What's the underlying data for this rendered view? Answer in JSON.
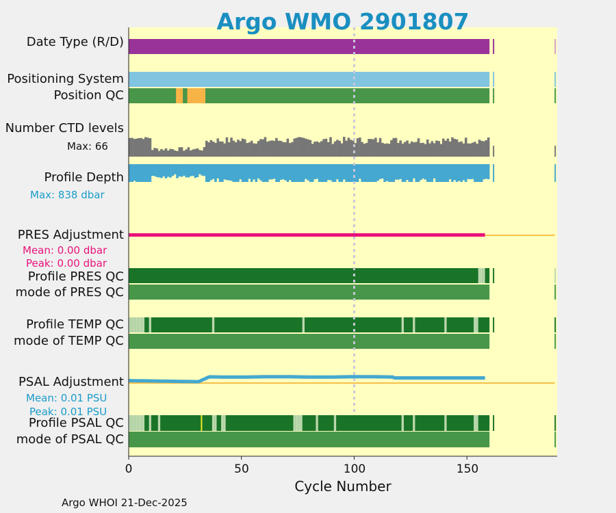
{
  "chart_data": {
    "type": "heatmap",
    "title": "Argo WMO 2901807",
    "xlabel": "Cycle Number",
    "xlim": [
      0,
      190
    ],
    "xticks": [
      "0",
      "50",
      "100",
      "150"
    ],
    "xtick_values": [
      0,
      50,
      100,
      150
    ],
    "marker_line_cycle": 100,
    "last_cycle": 160,
    "extra_cycle": 189,
    "rows": {
      "date_type": {
        "label": "Date Type (R/D)"
      },
      "positioning_system": {
        "label": "Positioning System"
      },
      "position_qc": {
        "label": "Position QC",
        "flag2_cycles": [
          21,
          22,
          23,
          26,
          27,
          28,
          29,
          30,
          31,
          32,
          33
        ]
      },
      "ctd_levels": {
        "label": "Number CTD levels",
        "max_text": "Max: 66",
        "max": 66
      },
      "profile_depth": {
        "label": "Profile Depth",
        "max_text": "Max:  838 dbar",
        "max": 838
      },
      "pres_adjustment": {
        "label": "PRES Adjustment",
        "mean_text": "Mean: 0.00 dbar",
        "peak_text": "Peak: 0.00 dbar",
        "last_adjusted_cycle": 158
      },
      "profile_pres_qc": {
        "label": "Profile PRES QC",
        "light_cycles": [
          155,
          156,
          157,
          189
        ]
      },
      "mode_pres_qc": {
        "label": "mode of PRES QC"
      },
      "profile_temp_qc": {
        "label": "Profile TEMP QC",
        "light_cycles": [
          0,
          1,
          2,
          3,
          4,
          5,
          6,
          9,
          37,
          77,
          121,
          126,
          140,
          153,
          154
        ]
      },
      "mode_temp_qc": {
        "label": "mode of TEMP QC"
      },
      "psal_adjustment": {
        "label": "PSAL Adjustment",
        "mean_text": "Mean: 0.01 PSU",
        "peak_text": "Peak: 0.01 PSU",
        "last_adjusted_cycle": 158
      },
      "profile_psal_qc": {
        "label": "Profile PSAL QC",
        "light_cycles": [
          0,
          1,
          2,
          3,
          4,
          5,
          6,
          9,
          13,
          37,
          38,
          41,
          42,
          73,
          74,
          75,
          76,
          83,
          91,
          121,
          126,
          140,
          153,
          154
        ],
        "yellow_cycles": [
          32
        ]
      },
      "mode_psal_qc": {
        "label": "mode of PSAL QC"
      }
    },
    "colors": {
      "background": "#ffffc0",
      "date_type": "#993399",
      "positioning": "#80c4e0",
      "qc_good": "#48964a",
      "qc_flag2": "#fcb446",
      "ctd_bar": "#777777",
      "depth_bar": "#45a8d0",
      "pres_adj": "#e8137a",
      "psal_adj": "#45a8d0",
      "adj_line": "#f5c04a",
      "profile_good": "#1a7428",
      "profile_light": "#bcd8ad",
      "yellow_flag": "#ecec20",
      "stat_pres": "#e8137a",
      "stat_psal": "#1a9cc8",
      "stat_depth": "#1a9cc8"
    }
  },
  "footer": "Argo WHOI 21-Dec-2025"
}
